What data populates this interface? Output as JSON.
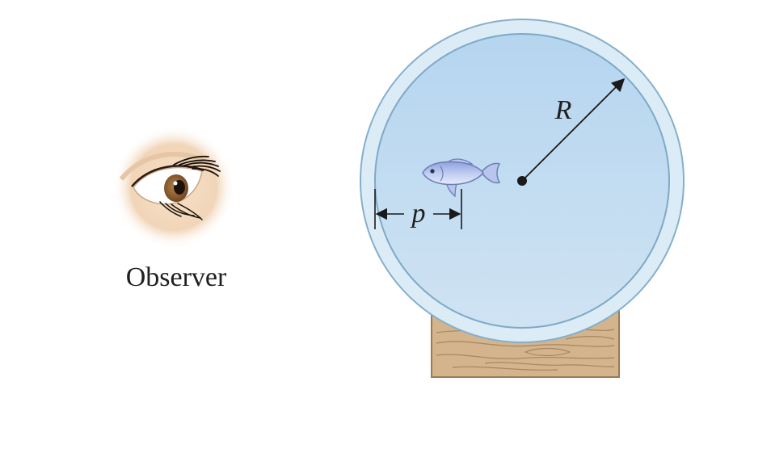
{
  "labels": {
    "observer": "Observer",
    "radius": "R",
    "distance": "p"
  },
  "colors": {
    "water": "#bcd9ef",
    "glass_rim": "#dcecf7",
    "glass_edge": "#7ea9c6",
    "stand_wood": "#d1b28a",
    "stand_outline": "#9b7b55",
    "fish_body": "#a9b8e6",
    "ink": "#1a1a1a",
    "iris": "#8a5a2b",
    "skin": "#f3d9bf"
  }
}
